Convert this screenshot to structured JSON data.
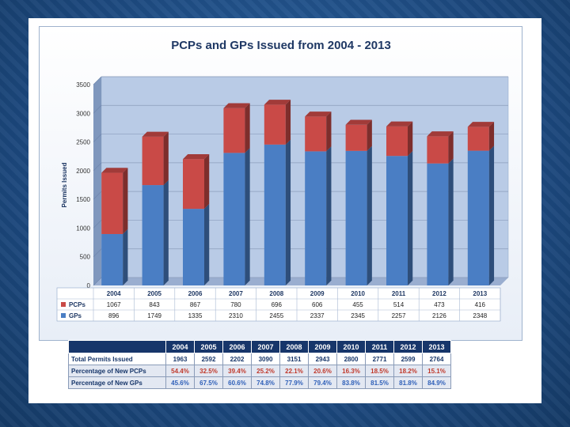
{
  "chart_data": {
    "type": "bar",
    "stacked": true,
    "title": "PCPs and GPs Issued from 2004 - 2013",
    "ylabel": "Permits Issued",
    "xlabel": "",
    "ylim": [
      0,
      3500
    ],
    "yticks": [
      "0",
      "500",
      "1000",
      "1500",
      "2000",
      "2500",
      "3000",
      "3500"
    ],
    "grid": true,
    "categories": [
      "2004",
      "2005",
      "2006",
      "2007",
      "2008",
      "2009",
      "2010",
      "2011",
      "2012",
      "2013"
    ],
    "series": [
      {
        "name": "GPs",
        "color": "#4a7ec4",
        "values": [
          896,
          1749,
          1335,
          2310,
          2455,
          2337,
          2345,
          2257,
          2126,
          2348
        ]
      },
      {
        "name": "PCPs",
        "color": "#c94a47",
        "values": [
          1067,
          843,
          867,
          780,
          696,
          606,
          455,
          514,
          473,
          416
        ]
      }
    ],
    "table_rows": [
      {
        "label": "PCPs",
        "color": "#c94a47",
        "values": [
          "1067",
          "843",
          "867",
          "780",
          "696",
          "606",
          "455",
          "514",
          "473",
          "416"
        ]
      },
      {
        "label": "GPs",
        "color": "#4a7ec4",
        "values": [
          "896",
          "1749",
          "1335",
          "2310",
          "2455",
          "2337",
          "2345",
          "2257",
          "2126",
          "2348"
        ]
      }
    ]
  },
  "stats_table": {
    "years": [
      "2004",
      "2005",
      "2006",
      "2007",
      "2008",
      "2009",
      "2010",
      "2011",
      "2012",
      "2013"
    ],
    "rows": [
      {
        "label": "Total Permits Issued",
        "values": [
          "1963",
          "2592",
          "2202",
          "3090",
          "3151",
          "2943",
          "2800",
          "2771",
          "2599",
          "2764"
        ]
      },
      {
        "label": "Percentage of  New PCPs",
        "values": [
          "54.4%",
          "32.5%",
          "39.4%",
          "25.2%",
          "22.1%",
          "20.6%",
          "16.3%",
          "18.5%",
          "18.2%",
          "15.1%"
        ]
      },
      {
        "label": "Percentage of  New GPs",
        "values": [
          "45.6%",
          "67.5%",
          "60.6%",
          "74.8%",
          "77.9%",
          "79.4%",
          "83.8%",
          "81.5%",
          "81.8%",
          "84.9%"
        ]
      }
    ]
  }
}
